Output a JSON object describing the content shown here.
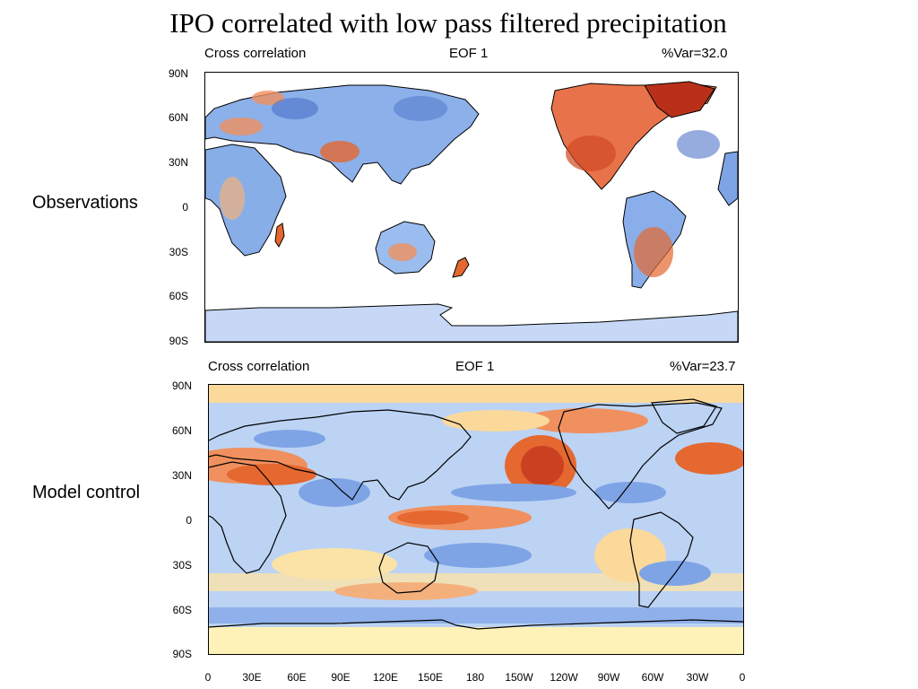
{
  "title": "IPO correlated with low pass filtered precipitation",
  "panels": [
    {
      "row_label": "Observations",
      "left_label": "Cross correlation",
      "center_label": "EOF 1",
      "right_label": "%Var=32.0",
      "lat_ticks": [
        "90N",
        "60N",
        "30N",
        "0",
        "30S",
        "60S",
        "90S"
      ]
    },
    {
      "row_label": "Model control",
      "left_label": "Cross correlation",
      "center_label": "EOF 1",
      "right_label": "%Var=23.7",
      "lat_ticks": [
        "90N",
        "60N",
        "30N",
        "0",
        "30S",
        "60S",
        "90S"
      ]
    }
  ],
  "lon_ticks": [
    "0",
    "30E",
    "60E",
    "90E",
    "120E",
    "150E",
    "180",
    "150W",
    "120W",
    "90W",
    "60W",
    "30W",
    "0"
  ],
  "colors": {
    "strong_positive": "#c8391e",
    "positive": "#ee7a4a",
    "weak_positive": "#fbd99a",
    "neutral": "#fff6c8",
    "weak_negative": "#bcd3f4",
    "negative": "#7ea4e6",
    "strong_negative": "#4a72c8",
    "antarctica_obs": "#c6d8f6",
    "coastline": "#000000"
  }
}
